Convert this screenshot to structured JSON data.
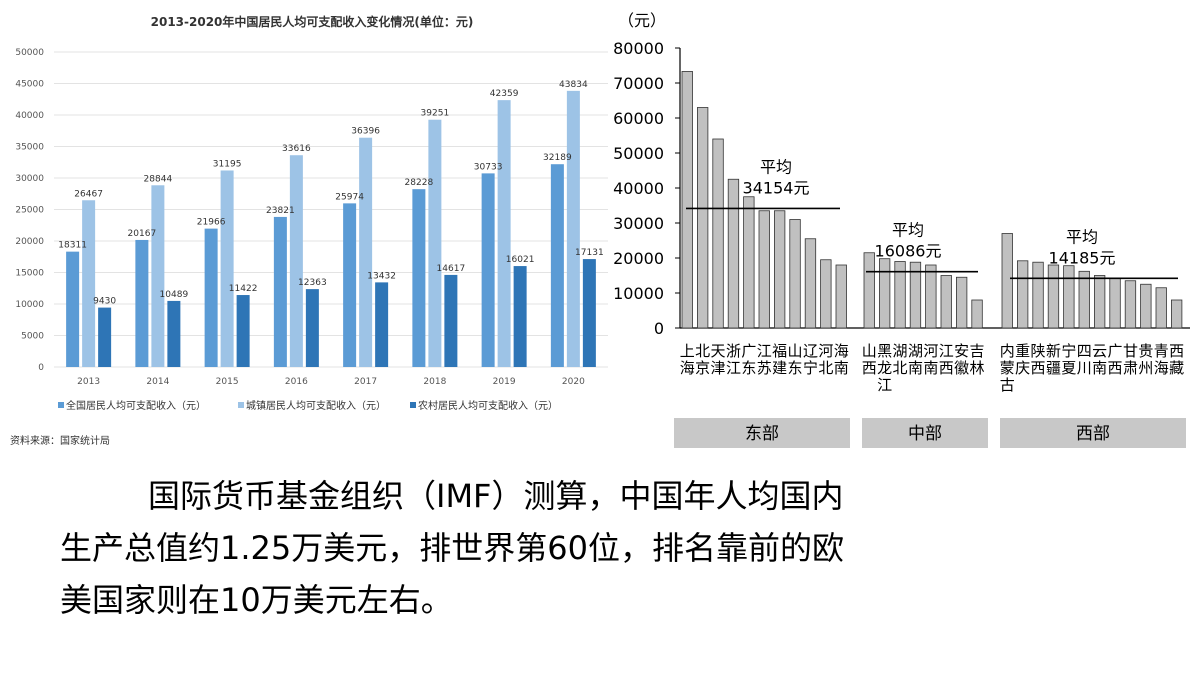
{
  "chart_data": [
    {
      "type": "bar",
      "title": "2013-2020年中国居民人均可支配收入变化情况(单位：元)",
      "categories": [
        "2013",
        "2014",
        "2015",
        "2016",
        "2017",
        "2018",
        "2019",
        "2020"
      ],
      "series": [
        {
          "name": "全国居民人均可支配收入（元）",
          "color": "#5b9bd5",
          "values": [
            18311,
            20167,
            21966,
            23821,
            25974,
            28228,
            30733,
            32189
          ]
        },
        {
          "name": "城镇居民人均可支配收入（元）",
          "color": "#9dc3e6",
          "values": [
            26467,
            28844,
            31195,
            33616,
            36396,
            39251,
            42359,
            43834
          ]
        },
        {
          "name": "农村居民人均可支配收入（元）",
          "color": "#2e75b6",
          "values": [
            9430,
            10489,
            11422,
            12363,
            13432,
            14617,
            16021,
            17131
          ]
        }
      ],
      "ylim": [
        0,
        50000
      ],
      "yticks": [
        0,
        5000,
        10000,
        15000,
        20000,
        25000,
        30000,
        35000,
        40000,
        45000,
        50000
      ],
      "grid": true,
      "legend_position": "bottom",
      "source": "资料来源：国家统计局"
    },
    {
      "type": "bar",
      "ylabel": "（元）",
      "ylim": [
        0,
        80000
      ],
      "yticks": [
        0,
        10000,
        20000,
        30000,
        40000,
        50000,
        60000,
        70000,
        80000
      ],
      "bar_color": "#c0c0c0",
      "groups": [
        {
          "region": "东部",
          "average_label": "平均",
          "average_value_label": "34154元",
          "average": 34154,
          "categories": [
            "上海",
            "北京",
            "天津",
            "浙江",
            "广东",
            "江苏",
            "福建",
            "山东",
            "辽宁",
            "河北",
            "海南"
          ],
          "values": [
            73300,
            63000,
            54000,
            42500,
            37500,
            33500,
            33500,
            31000,
            25500,
            19500,
            18000
          ]
        },
        {
          "region": "中部",
          "average_label": "平均",
          "average_value_label": "16086元",
          "average": 16086,
          "categories": [
            "山西",
            "黑龙江",
            "湖北",
            "湖南",
            "河南",
            "江西",
            "安徽",
            "吉林"
          ],
          "values": [
            21500,
            19800,
            19000,
            18800,
            18000,
            15000,
            14500,
            8000
          ]
        },
        {
          "region": "西部",
          "average_label": "平均",
          "average_value_label": "14185元",
          "average": 14185,
          "categories": [
            "内蒙古",
            "重庆",
            "陕西",
            "新疆",
            "宁夏",
            "四川",
            "云南",
            "广西",
            "甘肃",
            "贵州",
            "青海",
            "西藏"
          ],
          "values": [
            27000,
            19200,
            18800,
            18000,
            17800,
            16200,
            15000,
            14200,
            13500,
            12500,
            11500,
            8000
          ]
        }
      ]
    }
  ],
  "body_text": {
    "line1": "国际货币基金组织（IMF）测算，中国年人均国内",
    "line2": "生产总值约1.25万美元，排世界第60位，排名靠前的欧",
    "line3": "美国家则在10万美元左右。"
  }
}
